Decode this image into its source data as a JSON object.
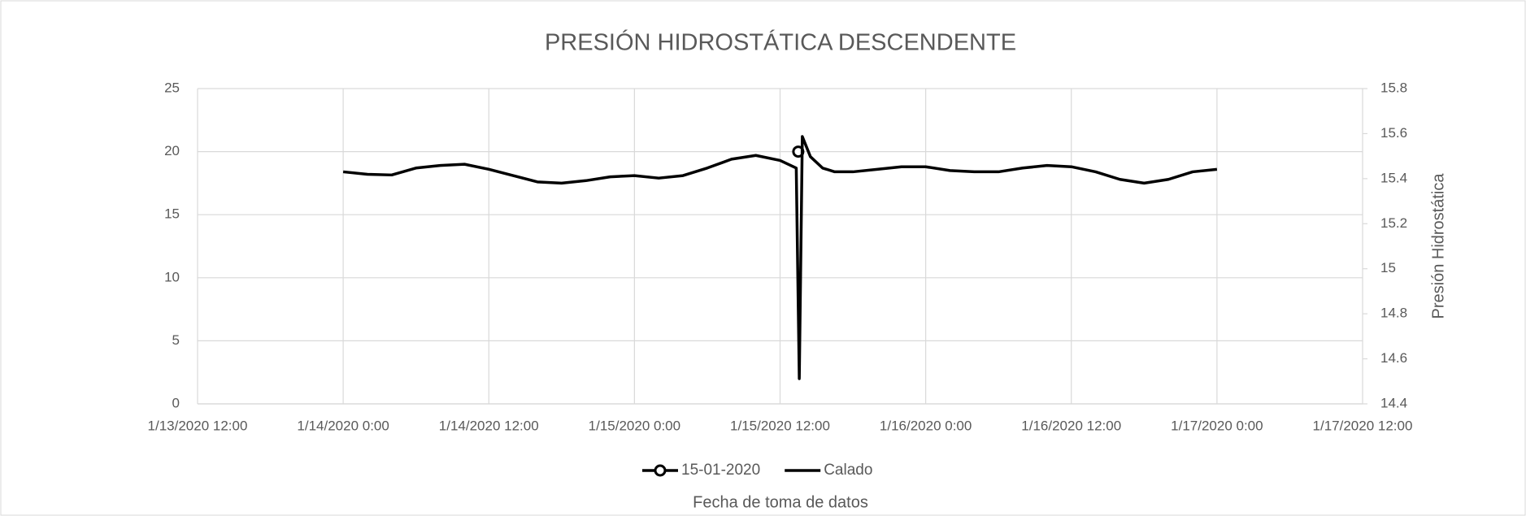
{
  "chart_data": {
    "type": "line",
    "title": "PRESIÓN HIDROSTÁTICA DESCENDENTE",
    "x_label": "Fecha de toma de datos",
    "y2_label": "Presión Hidrostática",
    "xlim": [
      "1/13/2020 12:00",
      "1/17/2020 12:00"
    ],
    "xticks": [
      "1/13/2020 12:00",
      "1/14/2020 0:00",
      "1/14/2020 12:00",
      "1/15/2020 0:00",
      "1/15/2020 12:00",
      "1/16/2020 0:00",
      "1/16/2020 12:00",
      "1/17/2020 0:00",
      "1/17/2020 12:00"
    ],
    "ylim": [
      0,
      25
    ],
    "yticks": [
      0,
      5,
      10,
      15,
      20,
      25
    ],
    "y2lim": [
      14.4,
      15.8
    ],
    "y2ticks": [
      14.4,
      14.6,
      14.8,
      15,
      15.2,
      15.4,
      15.6,
      15.8
    ],
    "grid": true,
    "legend": "bottom",
    "series": [
      {
        "name": "15-01-2020",
        "color": "#000000",
        "marker": "circle",
        "axis": "y2",
        "x": [
          "1/15/2020 13:30"
        ],
        "values": [
          15.52
        ]
      },
      {
        "name": "Calado",
        "color": "#000000",
        "x": [
          "1/14/2020 0:00",
          "1/14/2020 2:00",
          "1/14/2020 4:00",
          "1/14/2020 6:00",
          "1/14/2020 8:00",
          "1/14/2020 10:00",
          "1/14/2020 12:00",
          "1/14/2020 14:00",
          "1/14/2020 16:00",
          "1/14/2020 18:00",
          "1/14/2020 20:00",
          "1/14/2020 22:00",
          "1/15/2020 0:00",
          "1/15/2020 2:00",
          "1/15/2020 4:00",
          "1/15/2020 6:00",
          "1/15/2020 8:00",
          "1/15/2020 10:00",
          "1/15/2020 12:00",
          "1/15/2020 13:20",
          "1/15/2020 13:35",
          "1/15/2020 13:50",
          "1/15/2020 14:30",
          "1/15/2020 15:30",
          "1/15/2020 16:30",
          "1/15/2020 18:00",
          "1/15/2020 20:00",
          "1/15/2020 22:00",
          "1/16/2020 0:00",
          "1/16/2020 2:00",
          "1/16/2020 4:00",
          "1/16/2020 6:00",
          "1/16/2020 8:00",
          "1/16/2020 10:00",
          "1/16/2020 12:00",
          "1/16/2020 14:00",
          "1/16/2020 16:00",
          "1/16/2020 18:00",
          "1/16/2020 20:00",
          "1/16/2020 22:00",
          "1/17/2020 0:00"
        ],
        "values": [
          18.4,
          18.2,
          18.15,
          18.7,
          18.9,
          19.0,
          18.6,
          18.1,
          17.6,
          17.5,
          17.7,
          18.0,
          18.1,
          17.9,
          18.1,
          18.7,
          19.4,
          19.7,
          19.3,
          18.7,
          2,
          21.2,
          19.6,
          18.7,
          18.4,
          18.4,
          18.6,
          18.8,
          18.8,
          18.5,
          18.4,
          18.4,
          18.7,
          18.9,
          18.8,
          18.4,
          17.8,
          17.5,
          17.8,
          18.4,
          18.6
        ]
      }
    ]
  }
}
